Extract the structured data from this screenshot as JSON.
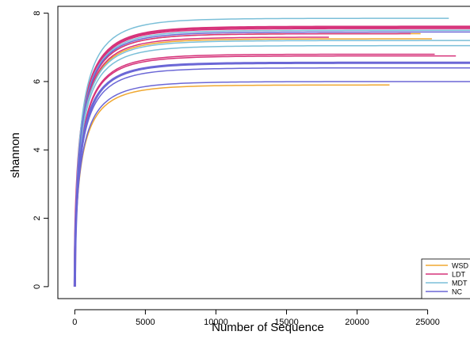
{
  "chart_data": {
    "type": "line",
    "xlabel": "Number of Sequence",
    "ylabel": "shannon",
    "xlim": [
      -1200,
      28000
    ],
    "ylim": [
      -0.35,
      8.2
    ],
    "x_ticks": [
      0,
      5000,
      10000,
      15000,
      20000,
      25000
    ],
    "x_tick_labels": [
      "0",
      "5000",
      "10000",
      "15000",
      "20000",
      "25000"
    ],
    "y_ticks": [
      0,
      2,
      4,
      6,
      8
    ],
    "y_tick_labels": [
      "0",
      "2",
      "4",
      "6",
      "8"
    ],
    "grid": false,
    "legend": {
      "position": "bottom-right",
      "entries": [
        {
          "label": "WSD",
          "color": "#f0a830"
        },
        {
          "label": "LDT",
          "color": "#d6337a"
        },
        {
          "label": "MDT",
          "color": "#7bbfd8"
        },
        {
          "label": "NC",
          "color": "#6b67d6"
        }
      ]
    },
    "series": [
      {
        "group": "WSD",
        "color": "#f0a830",
        "plateau": 5.9,
        "x_end": 22300,
        "width": 1.5
      },
      {
        "group": "WSD",
        "color": "#f0a830",
        "plateau": 7.25,
        "x_end": 25300,
        "width": 1.5
      },
      {
        "group": "WSD",
        "color": "#f0a830",
        "plateau": 7.4,
        "x_end": 24500,
        "width": 1.5
      },
      {
        "group": "LDT",
        "color": "#d6337a",
        "plateau": 7.6,
        "x_end": 28000,
        "width": 3
      },
      {
        "group": "LDT",
        "color": "#d6337a",
        "plateau": 7.55,
        "x_end": 28000,
        "width": 1.5
      },
      {
        "group": "LDT",
        "color": "#d6337a",
        "plateau": 7.4,
        "x_end": 23800,
        "width": 1.5
      },
      {
        "group": "LDT",
        "color": "#d6337a",
        "plateau": 7.3,
        "x_end": 18000,
        "width": 1.5
      },
      {
        "group": "LDT",
        "color": "#d6337a",
        "plateau": 6.8,
        "x_end": 25500,
        "width": 1.5
      },
      {
        "group": "LDT",
        "color": "#d6337a",
        "plateau": 6.75,
        "x_end": 27000,
        "width": 1.5
      },
      {
        "group": "MDT",
        "color": "#7bbfd8",
        "plateau": 7.85,
        "x_end": 26500,
        "width": 1.5
      },
      {
        "group": "MDT",
        "color": "#7bbfd8",
        "plateau": 7.5,
        "x_end": 28000,
        "width": 1.5
      },
      {
        "group": "MDT",
        "color": "#7bbfd8",
        "plateau": 7.2,
        "x_end": 28000,
        "width": 1.5
      },
      {
        "group": "MDT",
        "color": "#7bbfd8",
        "plateau": 7.05,
        "x_end": 28000,
        "width": 1.5
      },
      {
        "group": "NC",
        "color": "#6b67d6",
        "plateau": 7.45,
        "x_end": 28000,
        "width": 1.5
      },
      {
        "group": "NC",
        "color": "#6b67d6",
        "plateau": 6.55,
        "x_end": 28000,
        "width": 3
      },
      {
        "group": "NC",
        "color": "#6b67d6",
        "plateau": 6.4,
        "x_end": 28000,
        "width": 1.5
      },
      {
        "group": "NC",
        "color": "#6b67d6",
        "plateau": 6.0,
        "x_end": 28000,
        "width": 1.5
      }
    ]
  }
}
